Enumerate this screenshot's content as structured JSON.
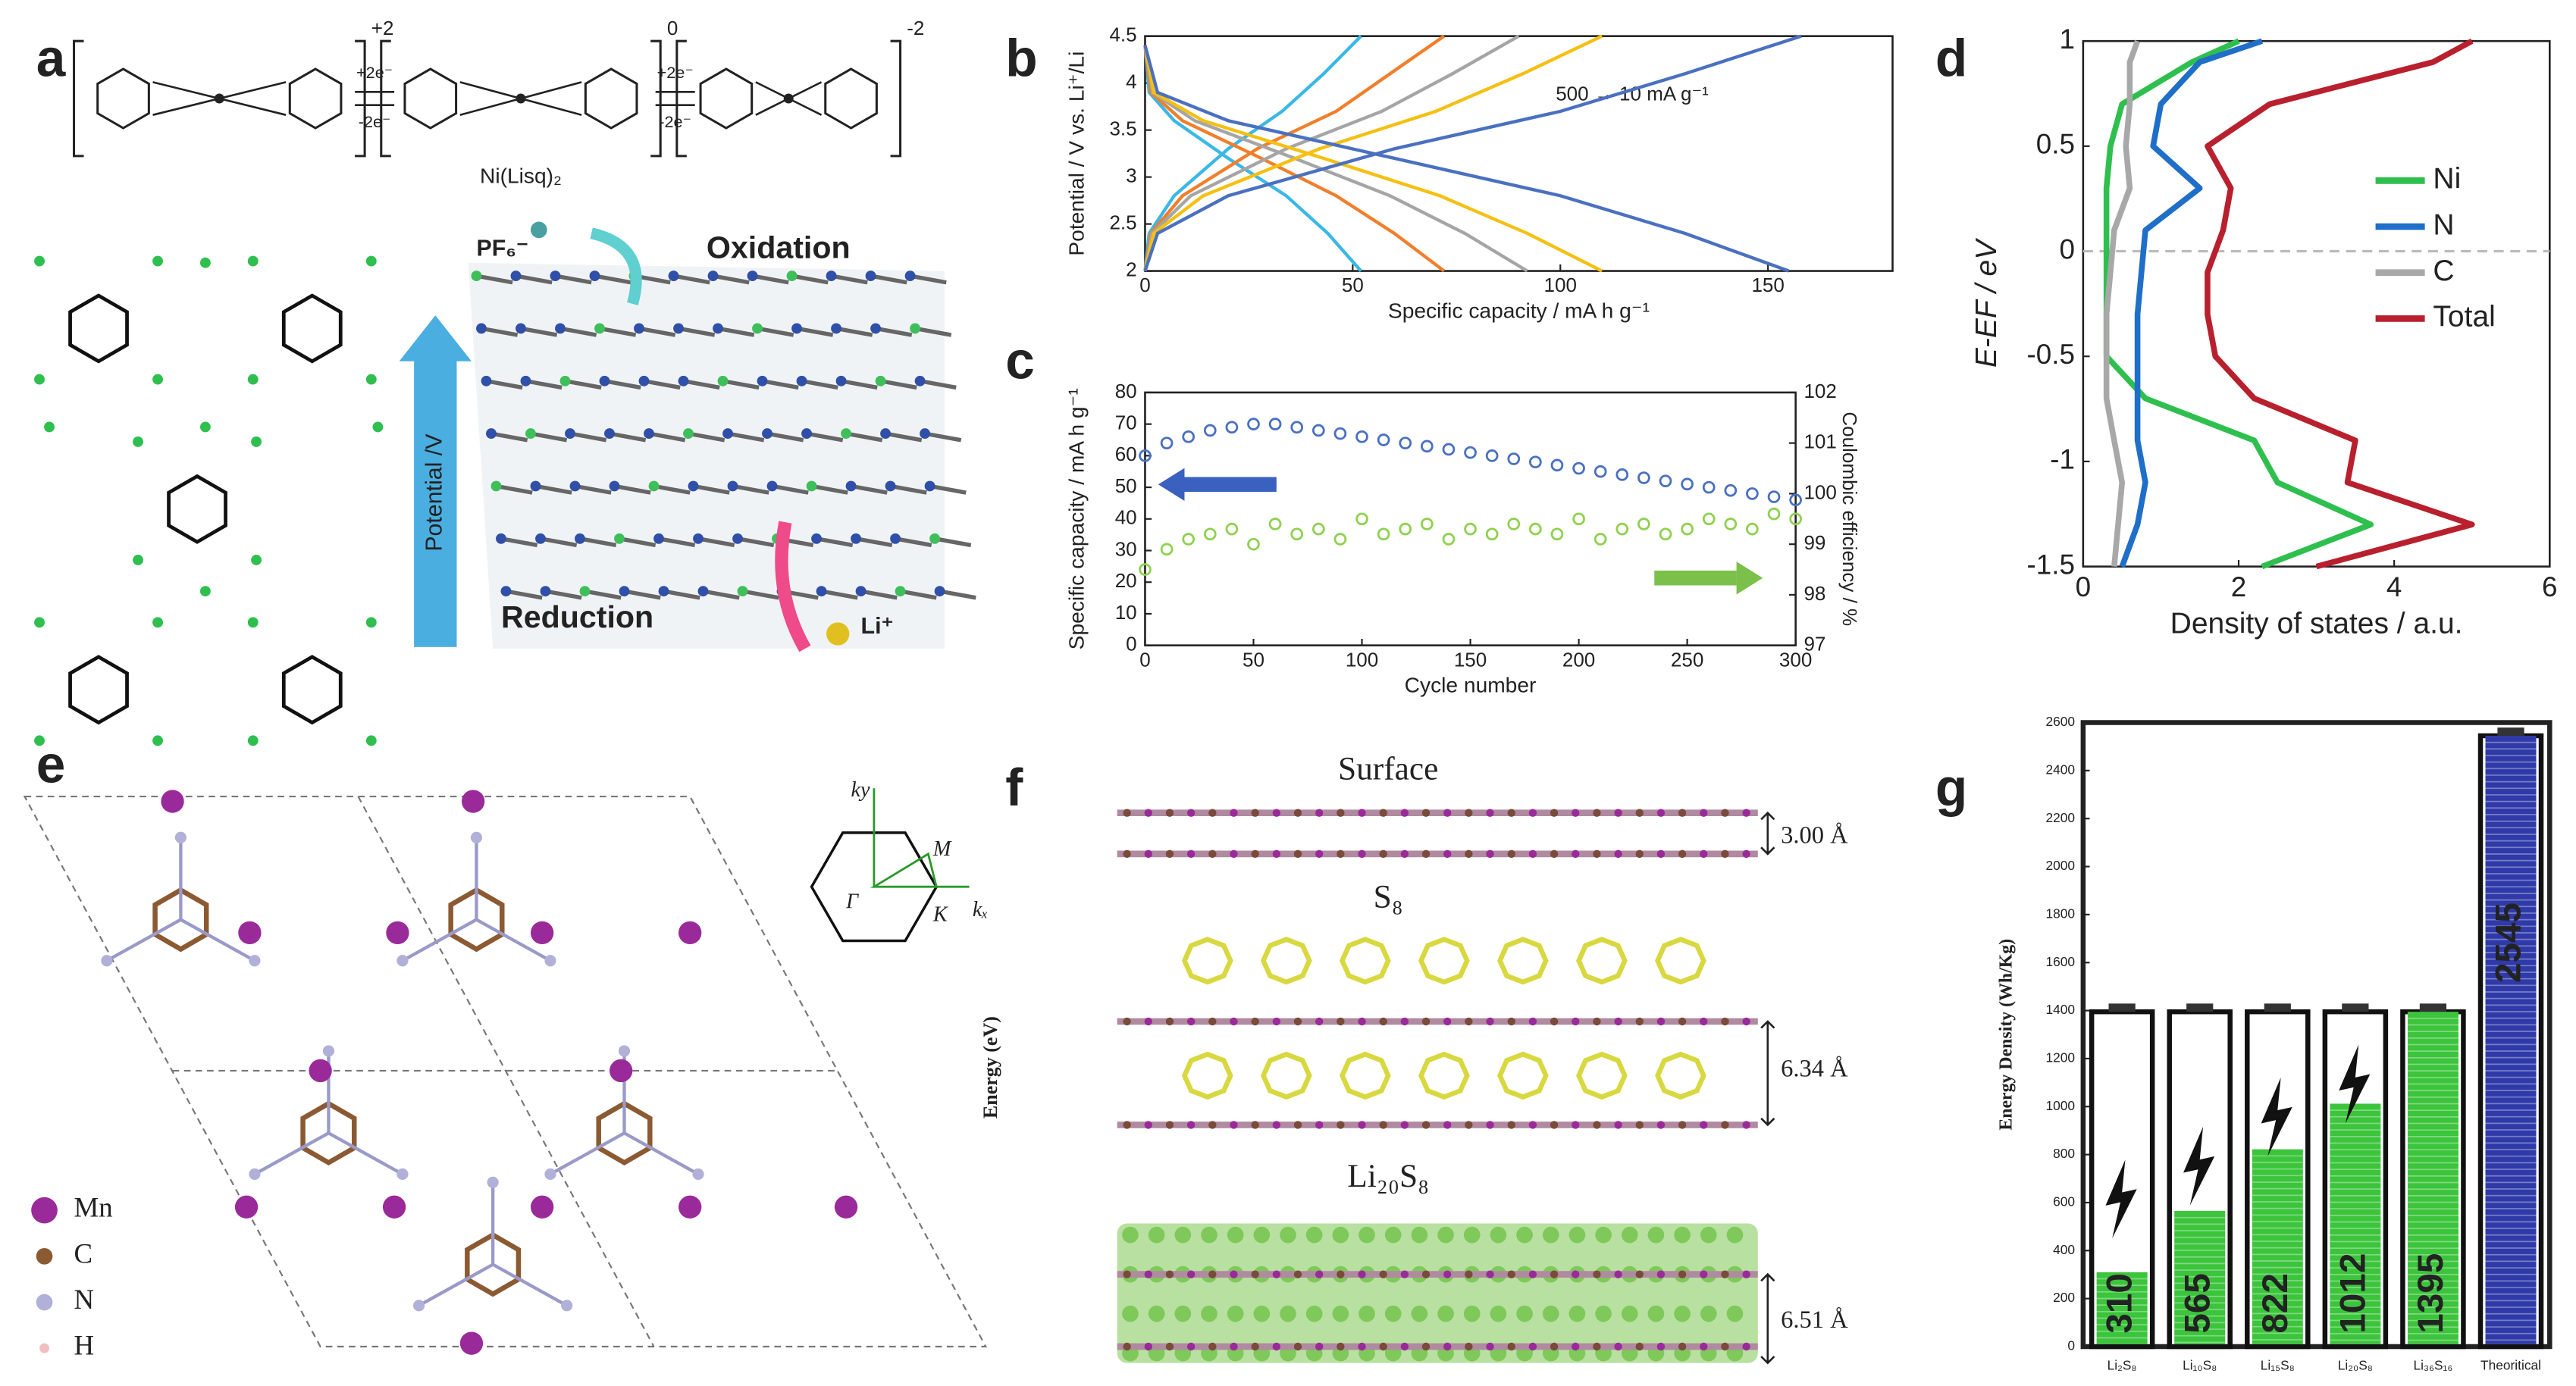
{
  "panel_labels": [
    "a",
    "b",
    "c",
    "d",
    "e",
    "f",
    "g"
  ],
  "panel_a": {
    "charges": [
      "+2",
      "0",
      "-2"
    ],
    "arrows": [
      "+2e⁻",
      "-2e⁻",
      "+2e⁻",
      "-2e⁻"
    ],
    "ligand": "Ni(Lisq)₂",
    "ion": "PF₆⁻",
    "oxidation": "Oxidation",
    "reduction": "Reduction",
    "axis": "Potential /V",
    "lithium": "Li⁺"
  },
  "panel_e": {
    "legend": [
      "Mn",
      "C",
      "N",
      "H"
    ],
    "kspace": [
      "kₓ",
      "ky",
      "M",
      "Γ",
      "K"
    ]
  },
  "panel_f": {
    "labels": [
      "Surface",
      "S₈",
      "Li₂₀S₈"
    ],
    "spacings": [
      "3.00 Å",
      "6.34 Å",
      "6.51 Å"
    ],
    "axis": "Energy (eV)"
  },
  "chart_data": [
    {
      "type": "line",
      "xlabel": "Specific capacity / mA h g⁻¹",
      "ylabel": "Potential / V vs. Li⁺/Li",
      "annotation": "500 → 10 mA g⁻¹",
      "xlim": [
        0,
        180
      ],
      "xticks": [
        0,
        50,
        100,
        150
      ],
      "ylim": [
        2,
        4.5
      ],
      "yticks": [
        2,
        2.5,
        3,
        3.5,
        4,
        4.5
      ],
      "series": [
        {
          "color": "#3ab8e6",
          "x": [
            0,
            1,
            7,
            20,
            34,
            44,
            52
          ],
          "values": [
            4.4,
            3.9,
            3.6,
            3.2,
            2.8,
            2.4,
            2.0
          ]
        },
        {
          "color": "#3ab8e6",
          "x": [
            0,
            1,
            7,
            20,
            33,
            43,
            52
          ],
          "values": [
            2,
            2.4,
            2.8,
            3.3,
            3.7,
            4.1,
            4.5
          ]
        },
        {
          "color": "#f07f2c",
          "x": [
            0,
            1.4,
            9,
            28,
            46,
            60,
            72
          ],
          "values": [
            4.4,
            3.9,
            3.6,
            3.2,
            2.8,
            2.4,
            2.0
          ]
        },
        {
          "color": "#f07f2c",
          "x": [
            0,
            1.4,
            9,
            27,
            46,
            59,
            72
          ],
          "values": [
            2,
            2.4,
            2.8,
            3.3,
            3.7,
            4.1,
            4.5
          ]
        },
        {
          "color": "#a5a5a5",
          "x": [
            0,
            1.8,
            12,
            36,
            59,
            77,
            92
          ],
          "values": [
            4.4,
            3.9,
            3.6,
            3.2,
            2.8,
            2.4,
            2.0
          ]
        },
        {
          "color": "#a5a5a5",
          "x": [
            0,
            1.7,
            11,
            34,
            57,
            74,
            90
          ],
          "values": [
            2,
            2.4,
            2.8,
            3.3,
            3.7,
            4.1,
            4.5
          ]
        },
        {
          "color": "#f5c012",
          "x": [
            0,
            2.1,
            14,
            43,
            71,
            92,
            110
          ],
          "values": [
            4.4,
            3.9,
            3.6,
            3.2,
            2.8,
            2.4,
            2.0
          ]
        },
        {
          "color": "#f5c012",
          "x": [
            0,
            2.1,
            14,
            42,
            70,
            91,
            110
          ],
          "values": [
            2,
            2.4,
            2.8,
            3.3,
            3.7,
            4.1,
            4.5
          ]
        },
        {
          "color": "#4a70c0",
          "x": [
            0,
            3,
            20,
            60,
            100,
            130,
            155
          ],
          "values": [
            4.4,
            3.9,
            3.6,
            3.2,
            2.8,
            2.4,
            2.0
          ]
        },
        {
          "color": "#4a70c0",
          "x": [
            0,
            3,
            20,
            60,
            100,
            130,
            158
          ],
          "values": [
            2,
            2.4,
            2.8,
            3.3,
            3.7,
            4.1,
            4.5
          ]
        }
      ]
    },
    {
      "type": "scatter",
      "xlabel": "Cycle number",
      "ylabel": "Specific capacity / mA h g⁻¹",
      "y2label": "Coulombic efficiency / %",
      "xlim": [
        0,
        300
      ],
      "xticks": [
        0,
        50,
        100,
        150,
        200,
        250,
        300
      ],
      "ylim": [
        0,
        80
      ],
      "yticks": [
        0,
        10,
        20,
        30,
        40,
        50,
        60,
        70,
        80
      ],
      "y2lim": [
        97,
        102
      ],
      "y2ticks": [
        97,
        98,
        99,
        100,
        101,
        102
      ],
      "x": [
        0,
        10,
        20,
        30,
        40,
        50,
        60,
        70,
        80,
        90,
        100,
        110,
        120,
        130,
        140,
        150,
        160,
        170,
        180,
        190,
        200,
        210,
        220,
        230,
        240,
        250,
        260,
        270,
        280,
        290,
        300
      ],
      "series": [
        {
          "color": "#4a70c0",
          "values": [
            60,
            64,
            66,
            68,
            69,
            70,
            70,
            69,
            68,
            67,
            66,
            65,
            64,
            63,
            62,
            61,
            60,
            59,
            58,
            57,
            56,
            55,
            54,
            53,
            52,
            51,
            50,
            49,
            48,
            47,
            46
          ]
        },
        {
          "color": "#8fd14f",
          "axis": "y2",
          "values": [
            98.5,
            98.9,
            99.1,
            99.2,
            99.3,
            99.0,
            99.4,
            99.2,
            99.3,
            99.1,
            99.5,
            99.2,
            99.3,
            99.4,
            99.1,
            99.3,
            99.2,
            99.4,
            99.3,
            99.2,
            99.5,
            99.1,
            99.3,
            99.4,
            99.2,
            99.3,
            99.5,
            99.4,
            99.3,
            99.6,
            99.5
          ]
        }
      ]
    },
    {
      "type": "line",
      "orientation": "horizontal",
      "xlabel": "Density of states / a.u.",
      "ylabel": "E-EF / eV",
      "xlim": [
        0,
        6
      ],
      "xticks": [
        0,
        2,
        4,
        6
      ],
      "ylim": [
        -1.5,
        1
      ],
      "yticks": [
        -1.5,
        -1,
        -0.5,
        0,
        0.5,
        1
      ],
      "legend": "right",
      "y": [
        -1.5,
        -1.3,
        -1.1,
        -0.9,
        -0.7,
        -0.5,
        -0.3,
        -0.1,
        0.1,
        0.3,
        0.5,
        0.7,
        0.9,
        1.0
      ],
      "series": [
        {
          "name": "Ni",
          "color": "#2fbf4f",
          "values": [
            2.3,
            3.7,
            2.5,
            2.2,
            0.8,
            0.3,
            0.3,
            0.3,
            0.3,
            0.3,
            0.35,
            0.5,
            1.4,
            2.0
          ]
        },
        {
          "name": "N",
          "color": "#1f6fc8",
          "values": [
            0.5,
            0.7,
            0.8,
            0.7,
            0.7,
            0.7,
            0.7,
            0.75,
            0.8,
            1.5,
            0.9,
            1.0,
            1.5,
            2.3
          ]
        },
        {
          "name": "C",
          "color": "#a8a8a8",
          "values": [
            0.4,
            0.45,
            0.5,
            0.4,
            0.3,
            0.3,
            0.3,
            0.35,
            0.4,
            0.6,
            0.55,
            0.6,
            0.6,
            0.7
          ]
        },
        {
          "name": "Total",
          "color": "#b8202e",
          "values": [
            3.0,
            5.0,
            3.4,
            3.5,
            2.2,
            1.7,
            1.6,
            1.6,
            1.8,
            1.9,
            1.6,
            2.4,
            4.5,
            5.0
          ]
        }
      ]
    },
    {
      "type": "bar",
      "ylabel": "Energy Density (Wh/Kg)",
      "categories": [
        "Li₂S₈",
        "Li₁₀S₈",
        "Li₁₅S₈",
        "Li₂₀S₈",
        "Li₃₆S₁₆",
        "Theoritical"
      ],
      "values": [
        310,
        565,
        822,
        1012,
        1395,
        2545
      ],
      "colors": [
        "#3cc43c",
        "#3cc43c",
        "#3cc43c",
        "#3cc43c",
        "#3cc43c",
        "#2f3aa8"
      ],
      "ylim": [
        0,
        2600
      ],
      "yticks": [
        0,
        200,
        400,
        600,
        800,
        1000,
        1200,
        1400,
        1600,
        1800,
        2000,
        2200,
        2400,
        2600
      ]
    }
  ]
}
